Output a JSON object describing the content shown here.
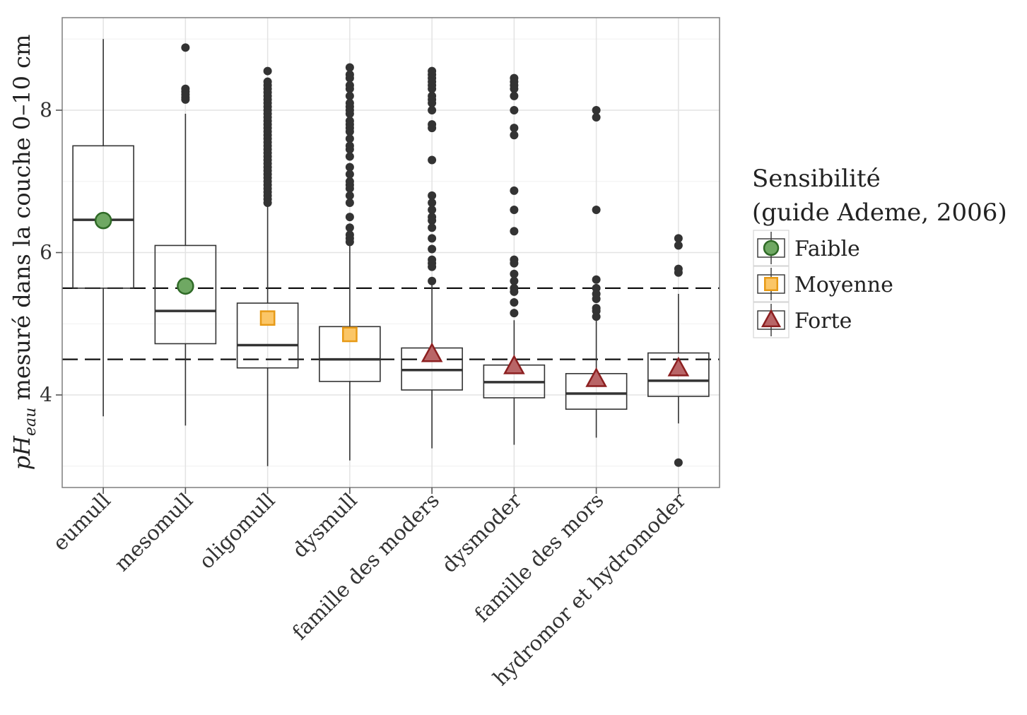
{
  "chart_data": {
    "type": "boxplot",
    "ylabel": "pH",
    "ylabel_sub": "eau",
    "ylabel_rest": " mesuré dans la couche 0–10 cm",
    "ylim": [
      2.7,
      9.3
    ],
    "y_ticks": [
      4,
      6,
      8
    ],
    "grid": true,
    "reference_lines": [
      4.5,
      5.5
    ],
    "categories": [
      "eumull",
      "mesomull",
      "oligomull",
      "dysmull",
      "famille des moders",
      "dysmoder",
      "famille des mors",
      "hydromor et hydromoder"
    ],
    "boxes": [
      {
        "category": "eumull",
        "q1": 5.5,
        "median": 6.46,
        "q3": 7.5,
        "whisker_low": 3.7,
        "whisker_high": 9.0,
        "mean": 6.45,
        "sensibilite": "Faible",
        "outliers": []
      },
      {
        "category": "mesomull",
        "q1": 4.72,
        "median": 5.18,
        "q3": 6.1,
        "whisker_low": 3.57,
        "whisker_high": 7.95,
        "mean": 5.53,
        "sensibilite": "Faible",
        "outliers": [
          8.88,
          8.3,
          8.26,
          8.22,
          8.18,
          8.15
        ]
      },
      {
        "category": "oligomull",
        "q1": 4.38,
        "median": 4.7,
        "q3": 5.29,
        "whisker_low": 3.0,
        "whisker_high": 6.66,
        "mean": 5.08,
        "sensibilite": "Moyenne",
        "outliers": [
          8.55,
          8.4,
          8.35,
          8.3,
          8.25,
          8.2,
          8.15,
          8.1,
          8.05,
          8.0,
          7.95,
          7.9,
          7.85,
          7.8,
          7.75,
          7.7,
          7.65,
          7.6,
          7.55,
          7.5,
          7.45,
          7.4,
          7.35,
          7.3,
          7.25,
          7.2,
          7.15,
          7.1,
          7.05,
          7.0,
          6.95,
          6.9,
          6.85,
          6.8,
          6.75,
          6.7
        ]
      },
      {
        "category": "dysmull",
        "q1": 4.19,
        "median": 4.5,
        "q3": 4.96,
        "whisker_low": 3.08,
        "whisker_high": 6.1,
        "mean": 4.85,
        "sensibilite": "Moyenne",
        "outliers": [
          8.6,
          8.5,
          8.45,
          8.35,
          8.3,
          8.2,
          8.1,
          8.05,
          8.0,
          7.95,
          7.85,
          7.8,
          7.75,
          7.7,
          7.6,
          7.5,
          7.45,
          7.35,
          7.2,
          7.1,
          7.0,
          6.95,
          6.9,
          6.8,
          6.7,
          6.5,
          6.35,
          6.25,
          6.2,
          6.15
        ]
      },
      {
        "category": "famille des moders",
        "q1": 4.07,
        "median": 4.35,
        "q3": 4.66,
        "whisker_low": 3.25,
        "whisker_high": 5.55,
        "mean": 4.57,
        "sensibilite": "Forte",
        "outliers": [
          8.55,
          8.5,
          8.45,
          8.4,
          8.35,
          8.3,
          8.2,
          8.15,
          8.1,
          8.0,
          7.8,
          7.75,
          7.3,
          6.8,
          6.7,
          6.6,
          6.5,
          6.45,
          6.35,
          6.2,
          6.05,
          5.9,
          5.85,
          5.8,
          5.6
        ]
      },
      {
        "category": "dysmoder",
        "q1": 3.96,
        "median": 4.18,
        "q3": 4.42,
        "whisker_low": 3.3,
        "whisker_high": 5.05,
        "mean": 4.4,
        "sensibilite": "Forte",
        "outliers": [
          8.45,
          8.4,
          8.35,
          8.3,
          8.2,
          8.0,
          7.75,
          7.65,
          6.87,
          6.6,
          6.3,
          5.9,
          5.85,
          5.7,
          5.6,
          5.5,
          5.45,
          5.3,
          5.15
        ]
      },
      {
        "category": "famille des mors",
        "q1": 3.8,
        "median": 4.02,
        "q3": 4.3,
        "whisker_low": 3.4,
        "whisker_high": 5.05,
        "mean": 4.22,
        "sensibilite": "Forte",
        "outliers": [
          8.0,
          7.9,
          6.6,
          5.62,
          5.5,
          5.42,
          5.35,
          5.22,
          5.18,
          5.1
        ]
      },
      {
        "category": "hydromor et hydromoder",
        "q1": 3.98,
        "median": 4.2,
        "q3": 4.59,
        "whisker_low": 3.6,
        "whisker_high": 5.42,
        "mean": 4.37,
        "sensibilite": "Forte",
        "outliers": [
          6.2,
          6.1,
          5.77,
          5.72,
          3.05
        ]
      }
    ],
    "legend": {
      "title_line1": "Sensibilité",
      "title_line2": "(guide Ademe, 2006)",
      "placement": "right",
      "items": [
        {
          "label": "Faible",
          "shape": "circle",
          "fill": "#6fa863",
          "stroke": "#2f6a27"
        },
        {
          "label": "Moyenne",
          "shape": "square",
          "fill": "#fbc667",
          "stroke": "#e79a17"
        },
        {
          "label": "Forte",
          "shape": "triangle",
          "fill": "#b96567",
          "stroke": "#8c1f20"
        }
      ]
    }
  }
}
